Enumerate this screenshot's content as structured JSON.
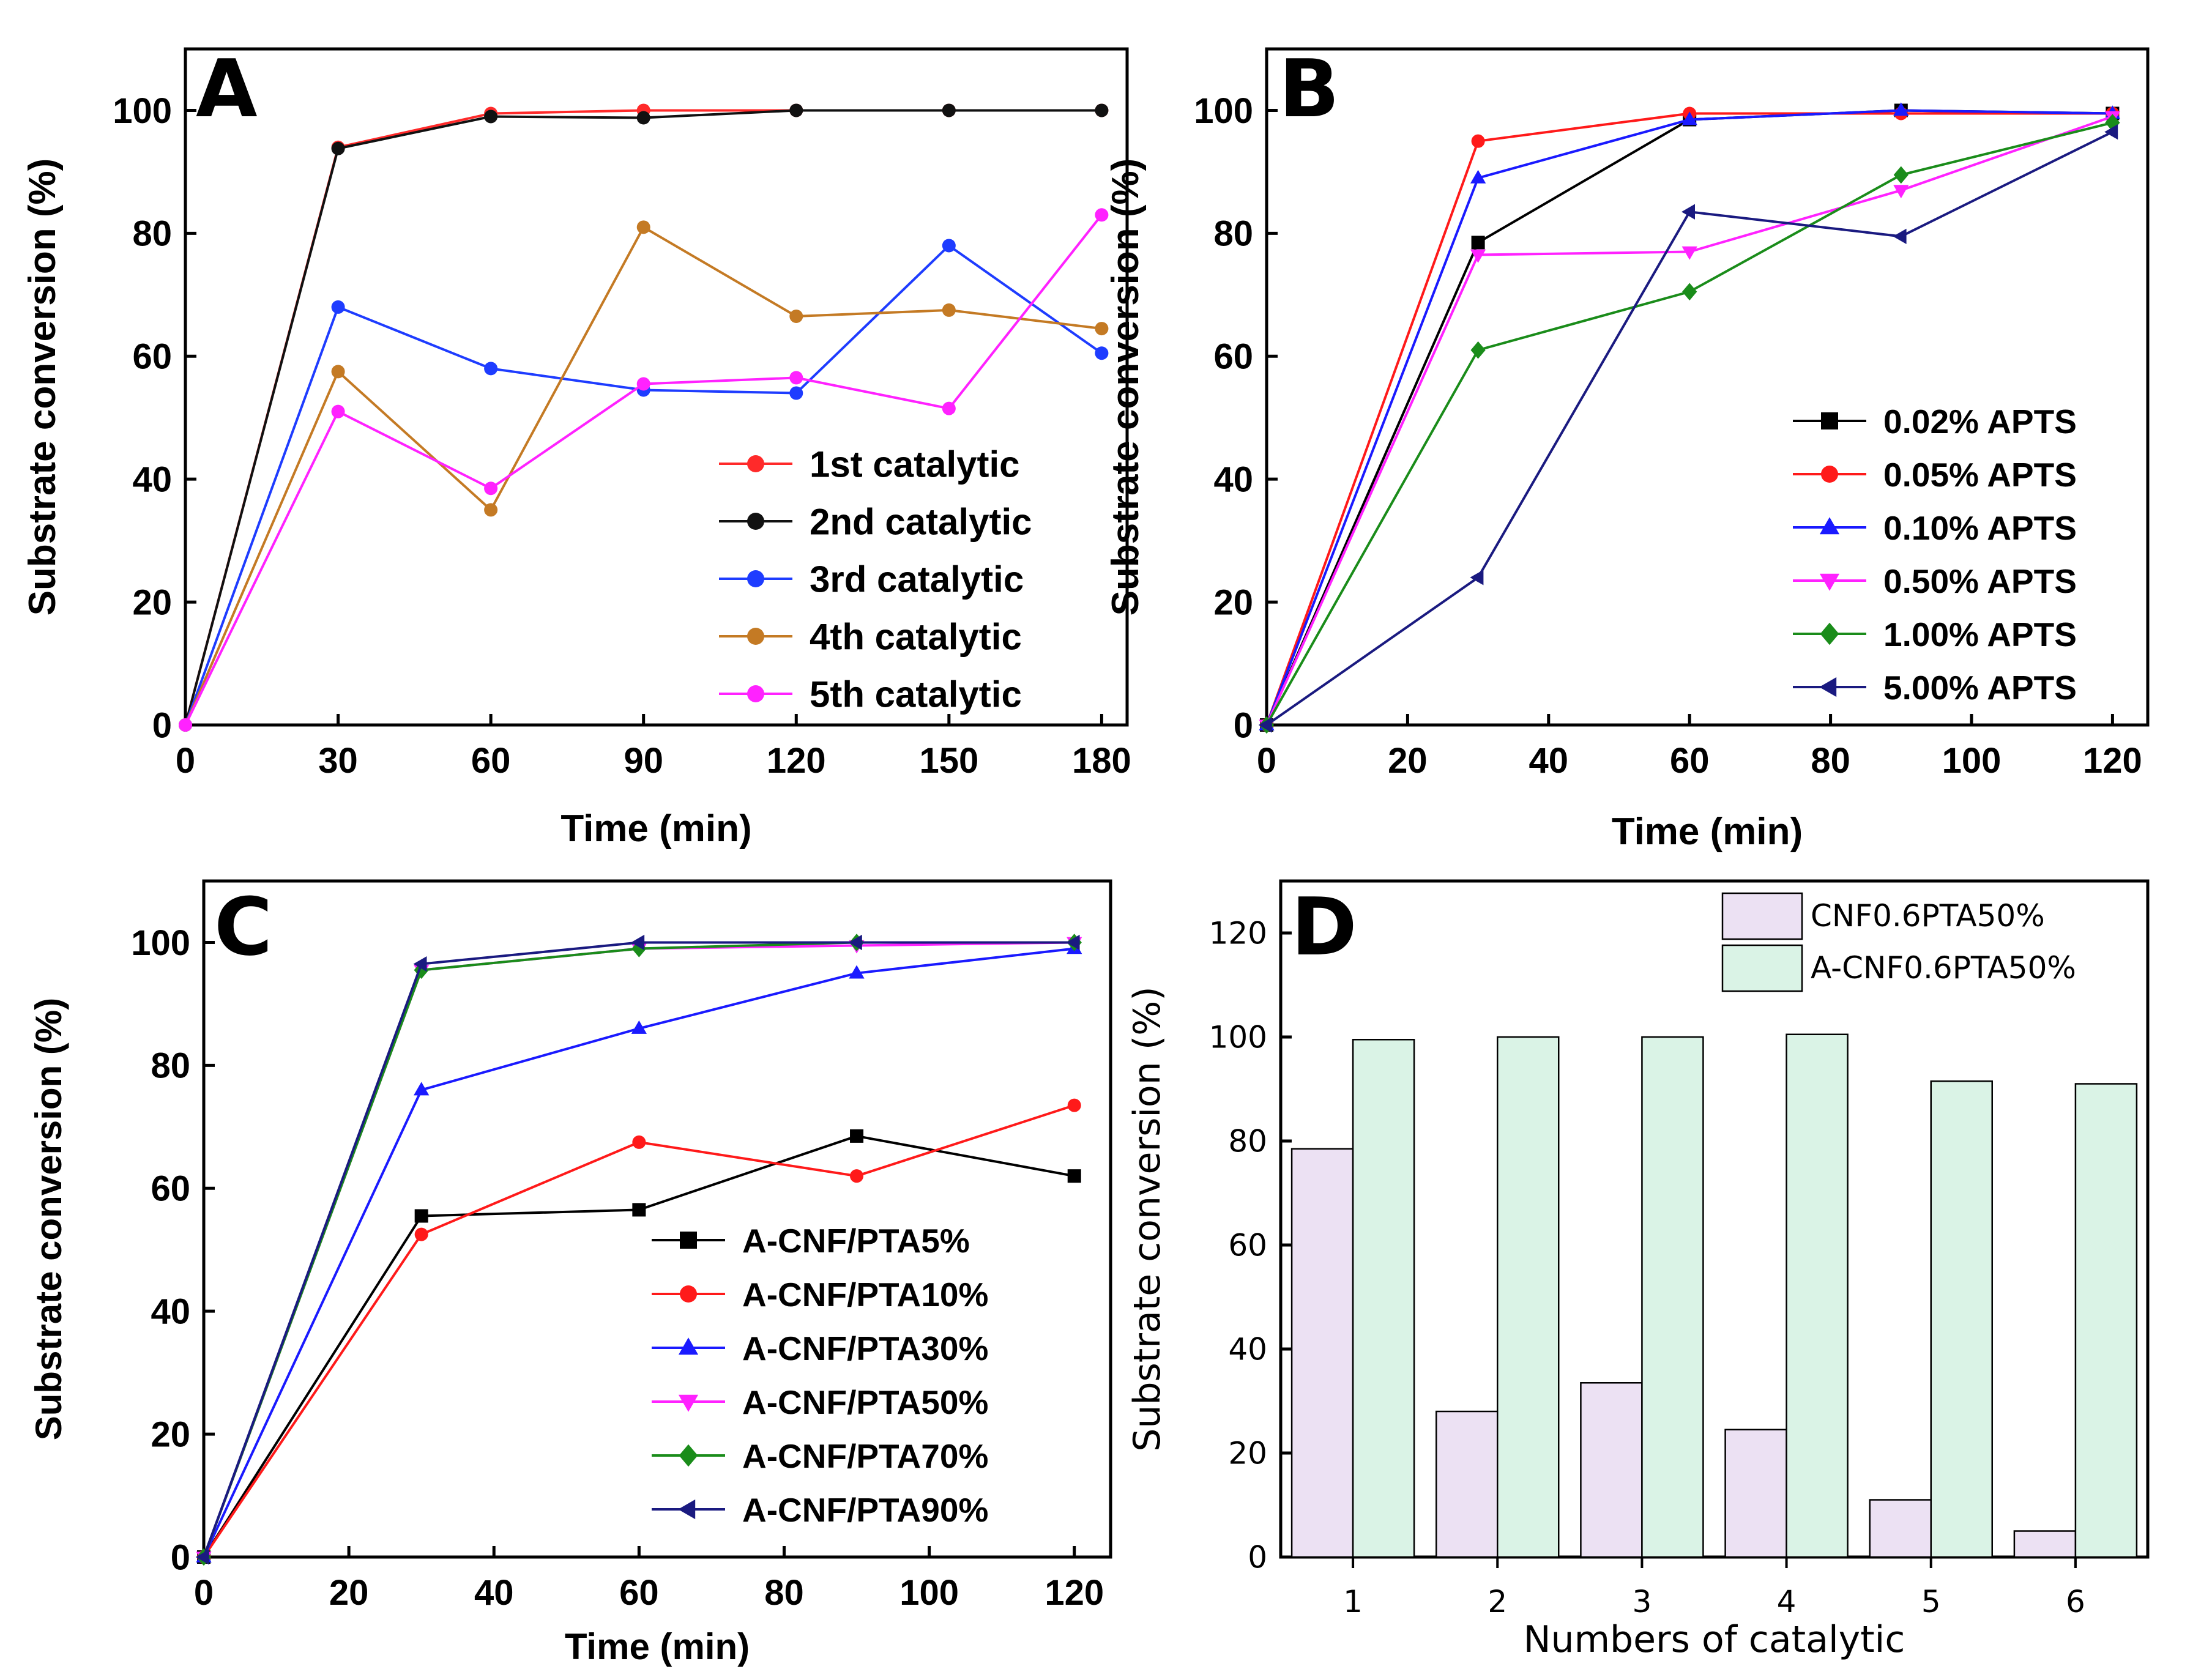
{
  "chart_data": [
    {
      "panel": "A",
      "type": "line",
      "xlabel": "Time (min)",
      "ylabel": "Substrate conversion (%)",
      "xlim": [
        0,
        185
      ],
      "ylim": [
        0,
        110
      ],
      "xticks": [
        0,
        30,
        60,
        90,
        120,
        150,
        180
      ],
      "yticks": [
        0,
        20,
        40,
        60,
        80,
        100
      ],
      "legend_position": "bottom-right",
      "series": [
        {
          "name": "1st catalytic",
          "color": "#ff2a2a",
          "marker": "circle",
          "x": [
            0,
            30,
            60,
            90,
            120,
            150,
            180
          ],
          "y": [
            0,
            94,
            99.5,
            100,
            100,
            100,
            100
          ]
        },
        {
          "name": "2nd catalytic",
          "color": "#111111",
          "marker": "circle",
          "x": [
            0,
            30,
            60,
            90,
            120,
            150,
            180
          ],
          "y": [
            0,
            93.8,
            99,
            98.8,
            100,
            100,
            100
          ]
        },
        {
          "name": "3rd catalytic",
          "color": "#1e3cff",
          "marker": "circle",
          "x": [
            0,
            30,
            60,
            90,
            120,
            150,
            180
          ],
          "y": [
            0,
            68,
            58,
            54.5,
            54,
            78,
            60.5
          ]
        },
        {
          "name": "4th catalytic",
          "color": "#c47a24",
          "marker": "circle",
          "x": [
            0,
            30,
            60,
            90,
            120,
            150,
            180
          ],
          "y": [
            0,
            57.5,
            35,
            81,
            66.5,
            67.5,
            64.5
          ]
        },
        {
          "name": "5th catalytic",
          "color": "#ff22ff",
          "marker": "circle",
          "x": [
            0,
            30,
            60,
            90,
            120,
            150,
            180
          ],
          "y": [
            0,
            51,
            38.5,
            55.5,
            56.5,
            51.5,
            83
          ]
        }
      ]
    },
    {
      "panel": "B",
      "type": "line",
      "xlabel": "Time (min)",
      "ylabel": "Substrate conversion (%)",
      "xlim": [
        0,
        125
      ],
      "ylim": [
        0,
        110
      ],
      "xticks": [
        0,
        20,
        40,
        60,
        80,
        100,
        120
      ],
      "yticks": [
        0,
        20,
        40,
        60,
        80,
        100
      ],
      "legend_position": "bottom-right",
      "series": [
        {
          "name": "0.02% APTS",
          "color": "#000000",
          "marker": "square",
          "x": [
            0,
            30,
            60,
            90,
            120
          ],
          "y": [
            0,
            78.5,
            98.5,
            100,
            99.5
          ]
        },
        {
          "name": "0.05% APTS",
          "color": "#ff1a1a",
          "marker": "circle",
          "x": [
            0,
            30,
            60,
            90,
            120
          ],
          "y": [
            0,
            95,
            99.5,
            99.5,
            99.5
          ]
        },
        {
          "name": "0.10% APTS",
          "color": "#1a1aff",
          "marker": "triangle-up",
          "x": [
            0,
            30,
            60,
            90,
            120
          ],
          "y": [
            0,
            89,
            98.5,
            100,
            99.5
          ]
        },
        {
          "name": "0.50% APTS",
          "color": "#ff22ff",
          "marker": "triangle-down",
          "x": [
            0,
            30,
            60,
            90,
            120
          ],
          "y": [
            0,
            76.5,
            77,
            87,
            99
          ]
        },
        {
          "name": "1.00% APTS",
          "color": "#1a8c1a",
          "marker": "diamond",
          "x": [
            0,
            30,
            60,
            90,
            120
          ],
          "y": [
            0,
            61,
            70.5,
            89.5,
            98
          ]
        },
        {
          "name": "5.00% APTS",
          "color": "#1a1a80",
          "marker": "triangle-left",
          "x": [
            0,
            30,
            60,
            90,
            120
          ],
          "y": [
            0,
            24,
            83.5,
            79.5,
            96.5
          ]
        }
      ]
    },
    {
      "panel": "C",
      "type": "line",
      "xlabel": "Time (min)",
      "ylabel": "Substrate conversion (%)",
      "xlim": [
        0,
        125
      ],
      "ylim": [
        0,
        110
      ],
      "xticks": [
        0,
        20,
        40,
        60,
        80,
        100,
        120
      ],
      "yticks": [
        0,
        20,
        40,
        60,
        80,
        100
      ],
      "legend_position": "bottom-right",
      "series": [
        {
          "name": "A-CNF/PTA5%",
          "color": "#000000",
          "marker": "square",
          "x": [
            0,
            30,
            60,
            90,
            120
          ],
          "y": [
            0,
            55.5,
            56.5,
            68.5,
            62
          ]
        },
        {
          "name": "A-CNF/PTA10%",
          "color": "#ff1a1a",
          "marker": "circle",
          "x": [
            0,
            30,
            60,
            90,
            120
          ],
          "y": [
            0,
            52.5,
            67.5,
            62,
            73.5
          ]
        },
        {
          "name": "A-CNF/PTA30%",
          "color": "#1a1aff",
          "marker": "triangle-up",
          "x": [
            0,
            30,
            60,
            90,
            120
          ],
          "y": [
            0,
            76,
            86,
            95,
            99
          ]
        },
        {
          "name": "A-CNF/PTA50%",
          "color": "#ff22ff",
          "marker": "triangle-down",
          "x": [
            0,
            30,
            60,
            90,
            120
          ],
          "y": [
            0,
            95.5,
            99,
            99.5,
            100
          ]
        },
        {
          "name": "A-CNF/PTA70%",
          "color": "#1a8c1a",
          "marker": "diamond",
          "x": [
            0,
            30,
            60,
            90,
            120
          ],
          "y": [
            0,
            95.5,
            99,
            100,
            100
          ]
        },
        {
          "name": "A-CNF/PTA90%",
          "color": "#1a1a80",
          "marker": "triangle-left",
          "x": [
            0,
            30,
            60,
            90,
            120
          ],
          "y": [
            0,
            96.5,
            100,
            100,
            100
          ]
        }
      ]
    },
    {
      "panel": "D",
      "type": "bar",
      "xlabel": "Numbers of catalytic",
      "ylabel": "Substrate conversion (%)",
      "ylim": [
        0,
        130
      ],
      "yticks": [
        0,
        20,
        40,
        60,
        80,
        100,
        120
      ],
      "categories": [
        "1",
        "2",
        "3",
        "4",
        "5",
        "6"
      ],
      "legend_position": "top-right",
      "series": [
        {
          "name": "CNF0.6PTA50%",
          "color": "#ece1f3",
          "values": [
            78.5,
            28,
            33.5,
            24.5,
            11,
            5
          ]
        },
        {
          "name": "A-CNF0.6PTA50%",
          "color": "#daf3e6",
          "values": [
            99.5,
            100,
            100,
            100.5,
            91.5,
            91
          ]
        }
      ]
    }
  ]
}
